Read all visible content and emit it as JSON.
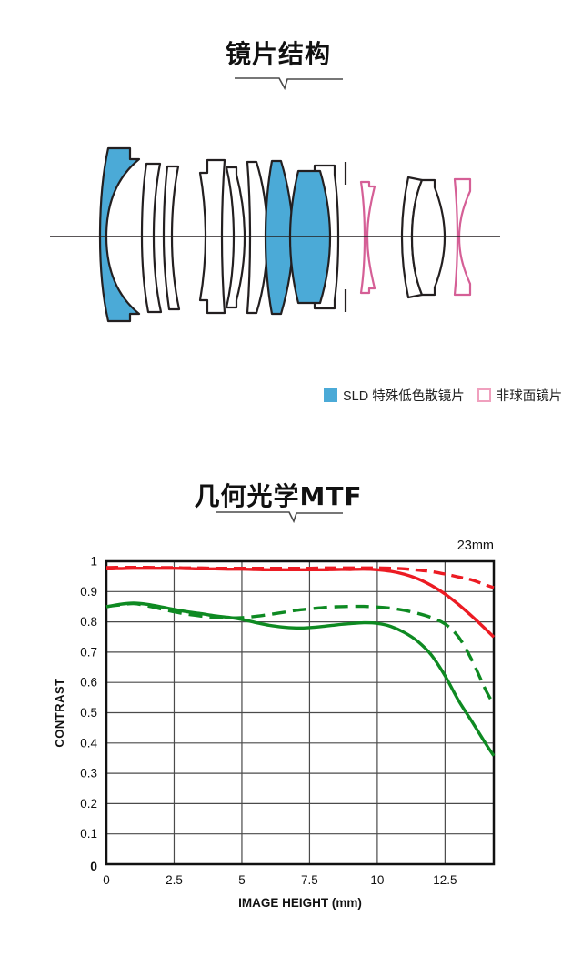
{
  "lens_section": {
    "title": "镜片结构",
    "legend": [
      {
        "label": "SLD 特殊低色散镜片",
        "swatch": "filled",
        "color": "#4BAAD7",
        "outline": "#4BAAD7"
      },
      {
        "label": "非球面镜片",
        "swatch": "outline",
        "color": "#ffffff",
        "outline": "#F0A0BE"
      }
    ],
    "colors": {
      "sld_fill": "#4BAAD7",
      "aspherical_stroke": "#D55F96",
      "element_stroke": "#231F20",
      "axis_stroke": "#231F20"
    }
  },
  "mtf_section": {
    "title": "几何光学MTF",
    "focal_label": "23mm"
  },
  "chart_data": {
    "type": "line",
    "title": "几何光学MTF",
    "subtitle": "23mm",
    "xlabel": "IMAGE HEIGHT (mm)",
    "ylabel": "CONTRAST",
    "xlim": [
      0,
      14.3
    ],
    "ylim": [
      0,
      1
    ],
    "x_ticks": [
      0,
      2.5,
      5,
      7.5,
      10,
      12.5
    ],
    "y_ticks": [
      0,
      0.1,
      0.2,
      0.3,
      0.4,
      0.5,
      0.6,
      0.7,
      0.8,
      0.9,
      1
    ],
    "grid": true,
    "legend_position": "none",
    "grid_color": "#4a4a4a",
    "border_color": "#111111",
    "x": [
      0,
      0.5,
      1,
      1.5,
      2,
      2.5,
      3,
      3.5,
      4,
      4.5,
      5,
      5.5,
      6,
      6.5,
      7,
      7.5,
      8,
      8.5,
      9,
      9.5,
      10,
      10.5,
      11,
      11.5,
      12,
      12.5,
      13,
      13.5,
      14,
      14.3
    ],
    "series": [
      {
        "name": "red-dashed",
        "color": "#EC1B23",
        "style": "dashed",
        "values": [
          0.979,
          0.98,
          0.98,
          0.98,
          0.979,
          0.979,
          0.978,
          0.978,
          0.977,
          0.977,
          0.977,
          0.977,
          0.977,
          0.977,
          0.977,
          0.977,
          0.978,
          0.978,
          0.978,
          0.978,
          0.978,
          0.977,
          0.975,
          0.971,
          0.966,
          0.958,
          0.948,
          0.938,
          0.922,
          0.913
        ]
      },
      {
        "name": "red-solid",
        "color": "#EC1B23",
        "style": "solid",
        "values": [
          0.975,
          0.976,
          0.977,
          0.977,
          0.977,
          0.977,
          0.976,
          0.975,
          0.975,
          0.974,
          0.974,
          0.973,
          0.972,
          0.972,
          0.972,
          0.972,
          0.972,
          0.973,
          0.973,
          0.974,
          0.972,
          0.967,
          0.957,
          0.942,
          0.92,
          0.892,
          0.857,
          0.818,
          0.776,
          0.75
        ]
      },
      {
        "name": "green-dashed",
        "color": "#0E8A22",
        "style": "dashed",
        "values": [
          0.85,
          0.856,
          0.86,
          0.853,
          0.843,
          0.833,
          0.825,
          0.819,
          0.815,
          0.813,
          0.814,
          0.818,
          0.824,
          0.831,
          0.838,
          0.843,
          0.847,
          0.85,
          0.851,
          0.851,
          0.849,
          0.845,
          0.838,
          0.828,
          0.814,
          0.793,
          0.75,
          0.672,
          0.575,
          0.528
        ]
      },
      {
        "name": "green-solid",
        "color": "#0E8A22",
        "style": "solid",
        "values": [
          0.85,
          0.858,
          0.862,
          0.858,
          0.85,
          0.841,
          0.833,
          0.827,
          0.82,
          0.815,
          0.808,
          0.798,
          0.789,
          0.783,
          0.78,
          0.781,
          0.785,
          0.79,
          0.794,
          0.797,
          0.795,
          0.785,
          0.765,
          0.735,
          0.69,
          0.622,
          0.54,
          0.47,
          0.398,
          0.358
        ]
      }
    ]
  }
}
